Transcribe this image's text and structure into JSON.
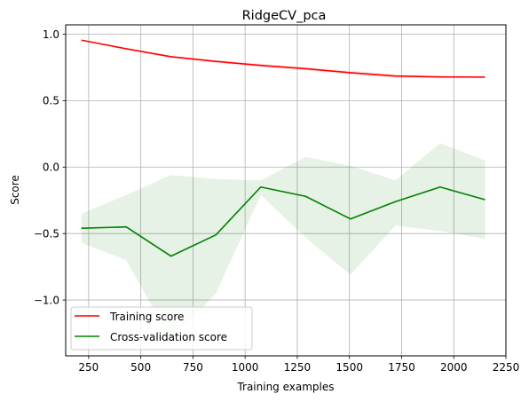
{
  "chart_data": {
    "type": "line",
    "title": "RidgeCV_pca",
    "xlabel": "Training examples",
    "ylabel": "Score",
    "xlim": [
      140,
      2250
    ],
    "ylim": [
      -1.42,
      1.07
    ],
    "xticks": [
      250,
      500,
      750,
      1000,
      1250,
      1500,
      1750,
      2000,
      2250
    ],
    "yticks": [
      1.0,
      0.5,
      0.0,
      -0.5,
      -1.0
    ],
    "ytick_labels": [
      "1.0",
      "0.5",
      "0.0",
      "−0.5",
      "−1.0"
    ],
    "grid": true,
    "legend_position": "lower-left",
    "x": [
      215,
      430,
      645,
      860,
      1075,
      1290,
      1505,
      1720,
      1935,
      2150
    ],
    "series": [
      {
        "name": "Training score",
        "color": "#ff0000",
        "values": [
          0.955,
          0.89,
          0.83,
          0.795,
          0.765,
          0.74,
          0.71,
          0.685,
          0.678,
          0.677
        ],
        "band_lower": [
          0.955,
          0.885,
          0.822,
          0.785,
          0.752,
          0.728,
          0.695,
          0.672,
          0.668,
          0.668
        ],
        "band_upper": [
          0.96,
          0.895,
          0.838,
          0.805,
          0.778,
          0.752,
          0.725,
          0.698,
          0.688,
          0.686
        ],
        "band_color": "#ff0000"
      },
      {
        "name": "Cross-validation score",
        "color": "#008000",
        "values": [
          -0.46,
          -0.45,
          -0.67,
          -0.51,
          -0.15,
          -0.22,
          -0.39,
          -0.26,
          -0.15,
          -0.245
        ],
        "band_lower": [
          -0.57,
          -0.7,
          -1.3,
          -0.95,
          -0.21,
          -0.53,
          -0.81,
          -0.44,
          -0.48,
          -0.54
        ],
        "band_upper": [
          -0.35,
          -0.21,
          -0.06,
          -0.09,
          -0.1,
          0.075,
          0.01,
          -0.1,
          0.18,
          0.05
        ],
        "band_color": "#008000"
      }
    ]
  }
}
